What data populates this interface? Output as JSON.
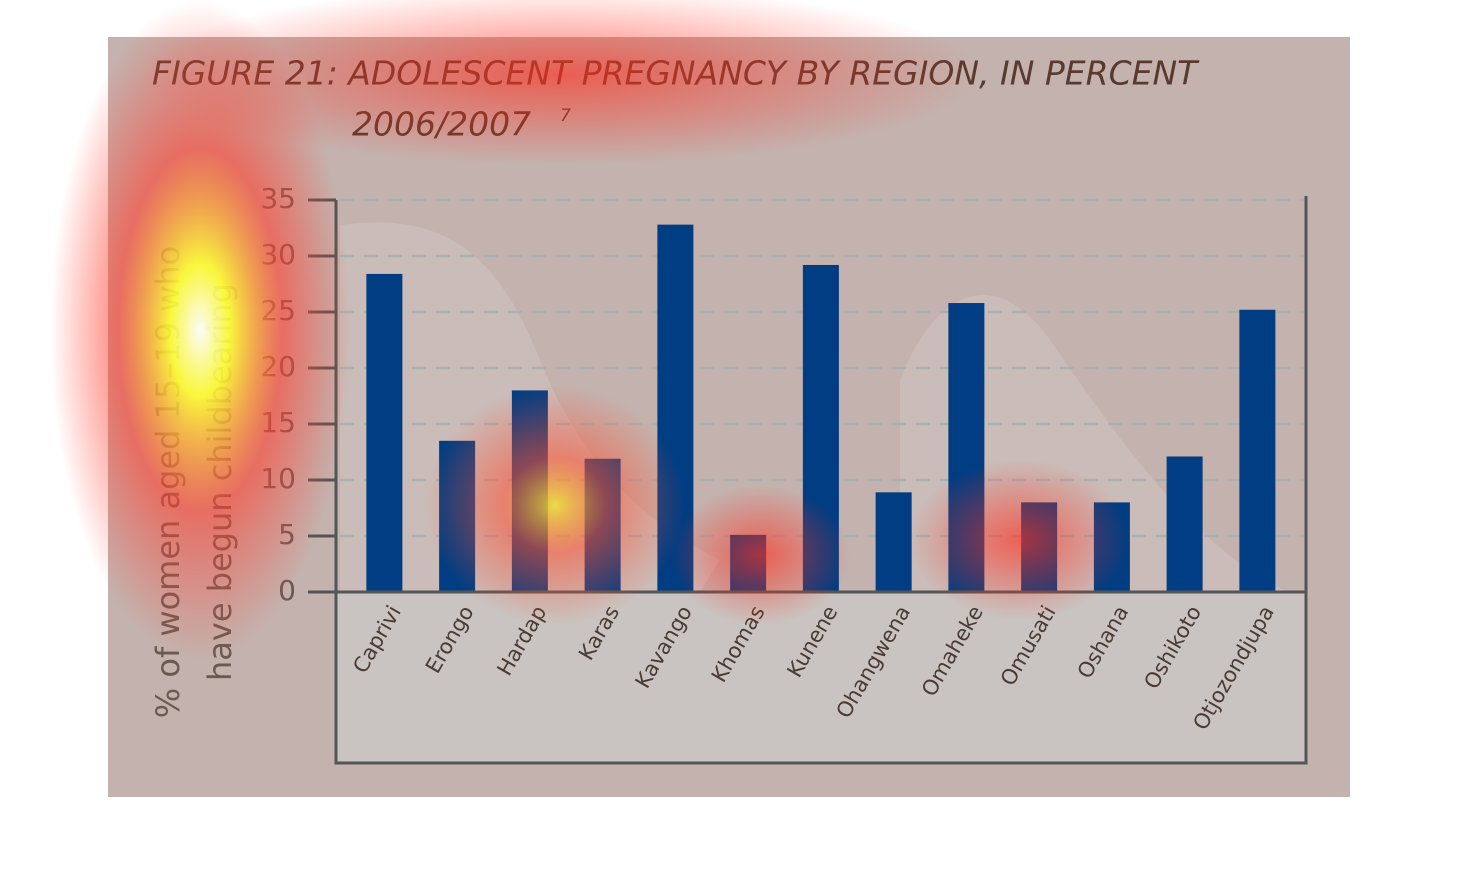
{
  "chart_data": {
    "type": "bar",
    "title": "FIGURE 21: ADOLESCENT PREGNANCY BY REGION, IN PERCENT",
    "subtitle": "2006/2007",
    "footnote": "7",
    "ylabel": [
      "% of women aged 15–19 who",
      "have begun childbearing"
    ],
    "categories": [
      "Caprivi",
      "Erongo",
      "Hardap",
      "Karas",
      "Kavango",
      "Khomas",
      "Kunene",
      "Ohangwena",
      "Omaheke",
      "Omusati",
      "Oshana",
      "Oshikoto",
      "Otjozondjupa"
    ],
    "values": [
      28.4,
      13.5,
      18.0,
      11.9,
      32.8,
      5.1,
      29.2,
      8.9,
      25.8,
      8.0,
      8.0,
      12.1,
      25.2
    ],
    "color": "#003d82",
    "ylim": [
      0,
      35
    ],
    "yticks": [
      0,
      5,
      10,
      15,
      20,
      25,
      30,
      35
    ],
    "grid": true
  }
}
